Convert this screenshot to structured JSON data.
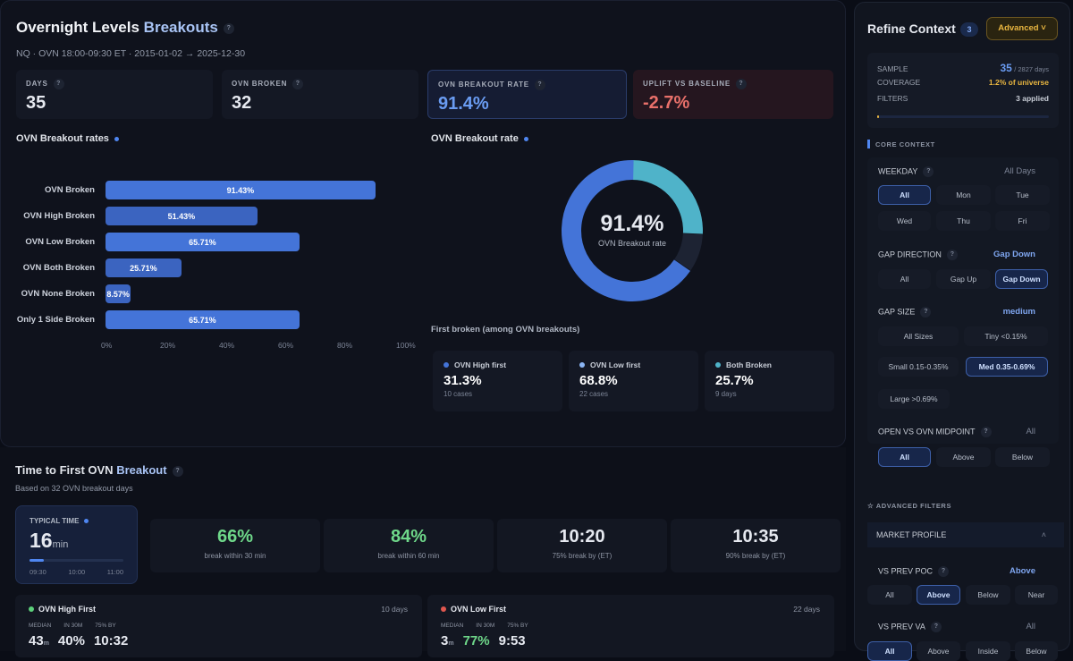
{
  "header": {
    "title": "Overnight Levels",
    "title_accent": "Breakouts",
    "subtitle": "NQ · OVN 18:00-09:30 ET · 2015-01-02 → 2025-12-30",
    "help": "?"
  },
  "kpis": [
    {
      "label": "DAYS",
      "value": "35"
    },
    {
      "label": "OVN BROKEN",
      "value": "32"
    },
    {
      "label": "OVN BREAKOUT RATE",
      "value": "91.4%",
      "color": "#6a9cf2"
    },
    {
      "label": "UPLIFT VS BASELINE",
      "value": "-2.7%",
      "color": "#e8706a"
    }
  ],
  "chart_data": [
    {
      "type": "bar",
      "title": "OVN Breakout rates",
      "categories": [
        "OVN Broken",
        "OVN High Broken",
        "OVN Low Broken",
        "OVN Both Broken",
        "OVN None Broken",
        "Only 1 Side Broken"
      ],
      "values": [
        91.43,
        51.43,
        65.71,
        25.71,
        8.57,
        65.71
      ],
      "value_labels": [
        "91.43%",
        "51.43%",
        "65.71%",
        "25.71%",
        "8.57%",
        "65.71%"
      ],
      "xlim": [
        0,
        100
      ],
      "ticks": [
        "0%",
        "20%",
        "40%",
        "60%",
        "80%",
        "100%"
      ],
      "orientation": "horizontal"
    },
    {
      "type": "pie",
      "title": "OVN Breakout rate",
      "center_value": "91.4%",
      "center_label": "OVN Breakout rate",
      "slices": [
        {
          "value": 25.7,
          "color": "#4fb3c9"
        },
        {
          "value": 8.6,
          "color": "#1d2333"
        },
        {
          "value": 65.7,
          "color": "#4474d8"
        }
      ]
    }
  ],
  "first_broken": {
    "title": "First broken (among OVN breakouts)",
    "items": [
      {
        "label": "OVN High first",
        "value": "31.3%",
        "note": "10 cases",
        "color": "#4474d8"
      },
      {
        "label": "OVN Low first",
        "value": "68.8%",
        "note": "22 cases",
        "color": "#8cb6f5"
      },
      {
        "label": "Both Broken",
        "value": "25.7%",
        "note": "9 days",
        "color": "#4fb3c9"
      }
    ]
  },
  "timing": {
    "title": "Time to First OVN",
    "title_accent": "Breakout",
    "subtitle": "Based on 32 OVN breakout days",
    "typical": {
      "label": "TYPICAL TIME",
      "value": "16",
      "unit": "min",
      "ticks": [
        "09:30",
        "10:00",
        "11:00"
      ],
      "progress": 0.15
    },
    "stats": [
      {
        "value": "66%",
        "label": "break within 30 min",
        "color": "#6fd88a"
      },
      {
        "value": "84%",
        "label": "break within 60 min",
        "color": "#6fd88a"
      },
      {
        "value": "10:20",
        "label": "75% break by (ET)",
        "color": "#ffffff"
      },
      {
        "value": "10:35",
        "label": "90% break by (ET)",
        "color": "#ffffff"
      }
    ],
    "first": [
      {
        "title": "OVN High First",
        "days": "10 days",
        "color": "#5cd07a",
        "labels": [
          "MEDIAN",
          "IN 30M",
          "75% BY"
        ],
        "median": "43",
        "unit": "m",
        "in30": "40%",
        "by75": "10:32",
        "in30color": "#ffffff"
      },
      {
        "title": "OVN Low First",
        "days": "22 days",
        "color": "#e0574f",
        "labels": [
          "MEDIAN",
          "IN 30M",
          "75% BY"
        ],
        "median": "3",
        "unit": "m",
        "in30": "77%",
        "by75": "9:53",
        "in30color": "#6fd88a"
      }
    ]
  },
  "sidebar": {
    "title": "Refine Context",
    "badge": "3",
    "advanced": "Advanced ˅",
    "sample": {
      "label": "SAMPLE",
      "value": "35",
      "total": "/ 2827 days",
      "coverage_label": "COVERAGE",
      "coverage": "1.2% of universe",
      "filters_label": "FILTERS",
      "filters": "3 applied",
      "progress": 0.012
    },
    "core": "CORE CONTEXT",
    "weekday": {
      "label": "WEEKDAY",
      "value": "All Days",
      "options": [
        "All",
        "Mon",
        "Tue",
        "Wed",
        "Thu",
        "Fri"
      ],
      "selected": 0
    },
    "gap_dir": {
      "label": "GAP DIRECTION",
      "value": "Gap Down",
      "options": [
        "All",
        "Gap Up",
        "Gap Down"
      ],
      "selected": 2
    },
    "gap_size": {
      "label": "GAP SIZE",
      "value": "medium",
      "options": [
        "All Sizes",
        "Tiny <0.15%",
        "Small 0.15-0.35%",
        "Med 0.35-0.69%",
        "Large >0.69%"
      ],
      "selected": 3
    },
    "open_mid": {
      "label": "OPEN VS OVN MIDPOINT",
      "value": "All",
      "options": [
        "All",
        "Above",
        "Below"
      ],
      "selected": 0
    },
    "advanced_filters": "ADVANCED FILTERS",
    "market_profile": "MARKET PROFILE",
    "poc": {
      "label": "VS PREV POC",
      "value": "Above",
      "options": [
        "All",
        "Above",
        "Below",
        "Near"
      ],
      "selected": 1
    },
    "va": {
      "label": "VS PREV VA",
      "value": "All",
      "options": [
        "All",
        "Above",
        "Inside",
        "Below"
      ],
      "selected": 0
    }
  }
}
